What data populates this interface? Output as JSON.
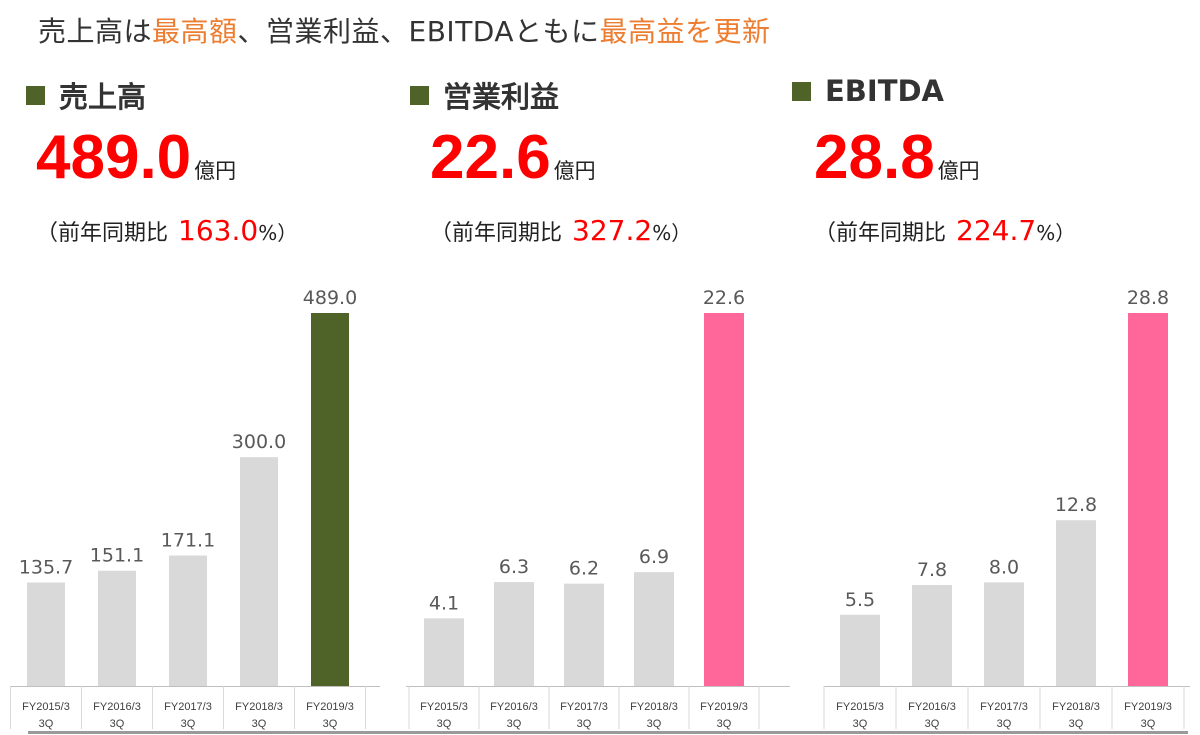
{
  "headline": {
    "part1": "売上高は",
    "part2": "最高額",
    "part3": "、営業利益、EBITDAともに",
    "part4": "最高益を更新"
  },
  "panels": [
    {
      "metric": "売上高",
      "value": "489.0",
      "unit": "億円",
      "yoy_prefix": "（前年同期比",
      "yoy_value": "163.0",
      "yoy_suffix": "%）"
    },
    {
      "metric": "営業利益",
      "value": "22.6",
      "unit": "億円",
      "yoy_prefix": "（前年同期比",
      "yoy_value": "327.2",
      "yoy_suffix": "%）"
    },
    {
      "metric": "EBITDA",
      "value": "28.8",
      "unit": "億円",
      "yoy_prefix": "（前年同期比",
      "yoy_value": "224.7",
      "yoy_suffix": "%）"
    }
  ],
  "colors": {
    "accent_orange": "#ED7D31",
    "value_red": "#FF0000",
    "bar_gray": "#D9D9D9",
    "bar_highlight_revenue": "#4F6228",
    "bar_highlight_profit": "#FF6699",
    "label_highlight_profit": "#FF6699",
    "bullet_green": "#4F6228"
  },
  "chart_data": [
    {
      "type": "bar",
      "categories": [
        "FY2015/3 3Q",
        "FY2016/3 3Q",
        "FY2017/3 3Q",
        "FY2018/3 3Q",
        "FY2019/3 3Q"
      ],
      "values": [
        135.7,
        151.1,
        171.1,
        300.0,
        489.0
      ],
      "labels": [
        "135.7",
        "151.1",
        "171.1",
        "300.0",
        "489.0"
      ],
      "ylim": [
        0,
        489.0
      ],
      "highlight_index": 4,
      "highlight_color": "#4F6228",
      "highlight_label_color": "#595959"
    },
    {
      "type": "bar",
      "categories": [
        "FY2015/3 3Q",
        "FY2016/3 3Q",
        "FY2017/3 3Q",
        "FY2018/3 3Q",
        "FY2019/3 3Q"
      ],
      "values": [
        4.1,
        6.3,
        6.2,
        6.9,
        22.6
      ],
      "labels": [
        "4.1",
        "6.3",
        "6.2",
        "6.9",
        "22.6"
      ],
      "ylim": [
        0,
        22.6
      ],
      "highlight_index": 4,
      "highlight_color": "#FF6699",
      "highlight_label_color": "#FF6699"
    },
    {
      "type": "bar",
      "categories": [
        "FY2015/3 3Q",
        "FY2016/3 3Q",
        "FY2017/3 3Q",
        "FY2018/3 3Q",
        "FY2019/3 3Q"
      ],
      "values": [
        5.5,
        7.8,
        8.0,
        12.8,
        28.8
      ],
      "labels": [
        "5.5",
        "7.8",
        "8.0",
        "12.8",
        "28.8"
      ],
      "ylim": [
        0,
        28.8
      ],
      "highlight_index": 4,
      "highlight_color": "#FF6699",
      "highlight_label_color": "#FF6699"
    }
  ]
}
